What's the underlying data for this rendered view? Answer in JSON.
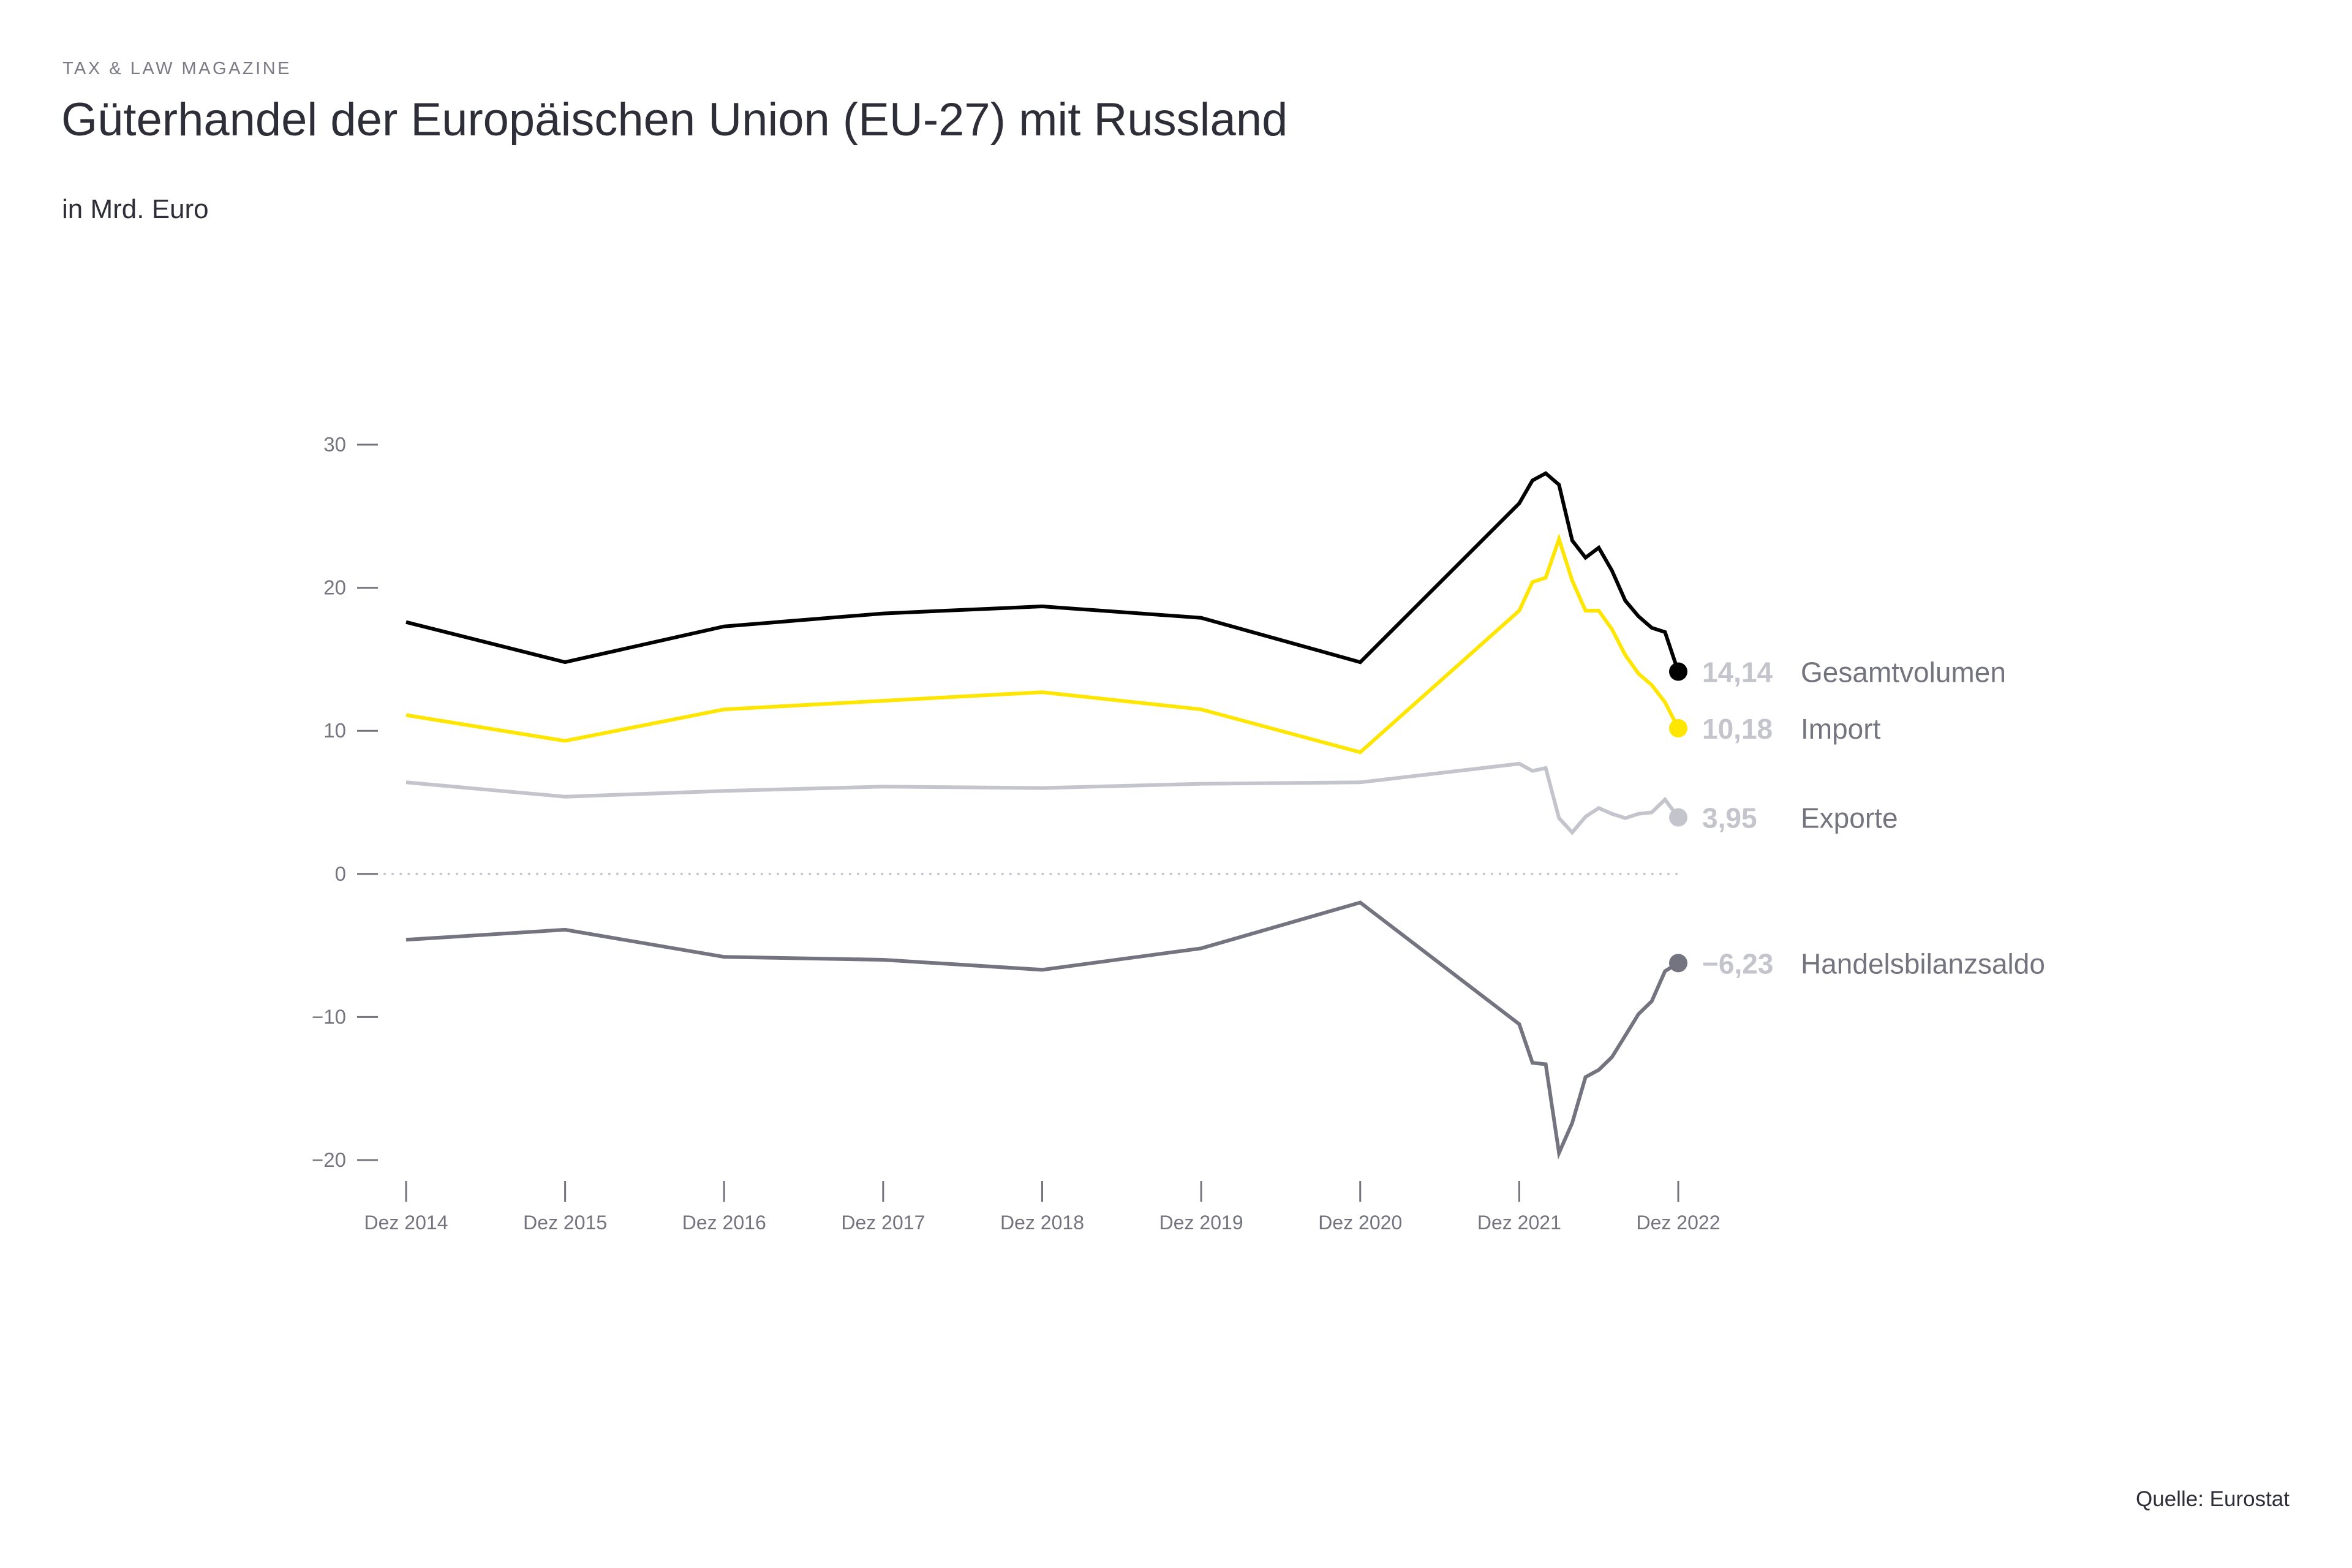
{
  "header": {
    "kicker": "TAX & LAW MAGAZINE",
    "title": "Güterhandel der Europäischen Union (EU-27) mit Russland",
    "subtitle": "in Mrd. Euro"
  },
  "footer": {
    "source": "Quelle: Eurostat"
  },
  "chart_data": {
    "type": "line",
    "title": "Güterhandel der Europäischen Union (EU-27) mit Russland",
    "subtitle": "in Mrd. Euro",
    "xlabel": "",
    "ylabel": "",
    "ylim": [
      -20,
      30
    ],
    "yticks": [
      30,
      20,
      10,
      0,
      -10,
      -20
    ],
    "ytick_labels": [
      "30",
      "20",
      "10",
      "0",
      "−10",
      "−20"
    ],
    "xlim": [
      0,
      96
    ],
    "xticks": [
      0,
      12,
      24,
      36,
      48,
      60,
      72,
      84,
      96
    ],
    "xtick_labels": [
      "Dez 2014",
      "Dez 2015",
      "Dez 2016",
      "Dez 2017",
      "Dez 2018",
      "Dez 2019",
      "Dez 2020",
      "Dez 2021",
      "Dez 2022"
    ],
    "x_unit": "months since Dez 2014",
    "zero_line": "dotted",
    "grid": false,
    "legend": "end-of-line labels, right",
    "x": [
      0,
      12,
      24,
      36,
      48,
      60,
      72,
      84,
      85,
      86,
      87,
      88,
      89,
      90,
      91,
      92,
      93,
      94,
      95,
      96
    ],
    "series": [
      {
        "name": "Gesamtvolumen",
        "color": "#000000",
        "end_label": "14,14",
        "values": [
          17.6,
          14.8,
          17.3,
          18.2,
          18.7,
          17.9,
          14.8,
          25.9,
          27.5,
          28.0,
          27.2,
          23.3,
          22.1,
          22.8,
          21.2,
          19.1,
          18.0,
          17.2,
          16.9,
          14.14
        ]
      },
      {
        "name": "Import",
        "color": "#ffe600",
        "end_label": "10,18",
        "values": [
          11.1,
          9.3,
          11.5,
          12.1,
          12.7,
          11.5,
          8.5,
          18.4,
          20.4,
          20.7,
          23.4,
          20.5,
          18.4,
          18.4,
          17.1,
          15.3,
          14.0,
          13.2,
          12.0,
          10.18
        ]
      },
      {
        "name": "Exporte",
        "color": "#c4c4cd",
        "end_label": "3,95",
        "values": [
          6.4,
          5.4,
          5.8,
          6.1,
          6.0,
          6.3,
          6.4,
          7.7,
          7.2,
          7.4,
          3.9,
          2.9,
          4.0,
          4.6,
          4.2,
          3.9,
          4.2,
          4.3,
          5.2,
          3.95
        ]
      },
      {
        "name": "Handelsbilanzsaldo",
        "color": "#747480",
        "end_label": "−6,23",
        "values": [
          -4.6,
          -3.9,
          -5.8,
          -6.0,
          -6.7,
          -5.2,
          -2.0,
          -10.5,
          -13.2,
          -13.3,
          -19.5,
          -17.4,
          -14.2,
          -13.7,
          -12.8,
          -11.3,
          -9.8,
          -8.9,
          -6.8,
          -6.23
        ]
      }
    ]
  }
}
